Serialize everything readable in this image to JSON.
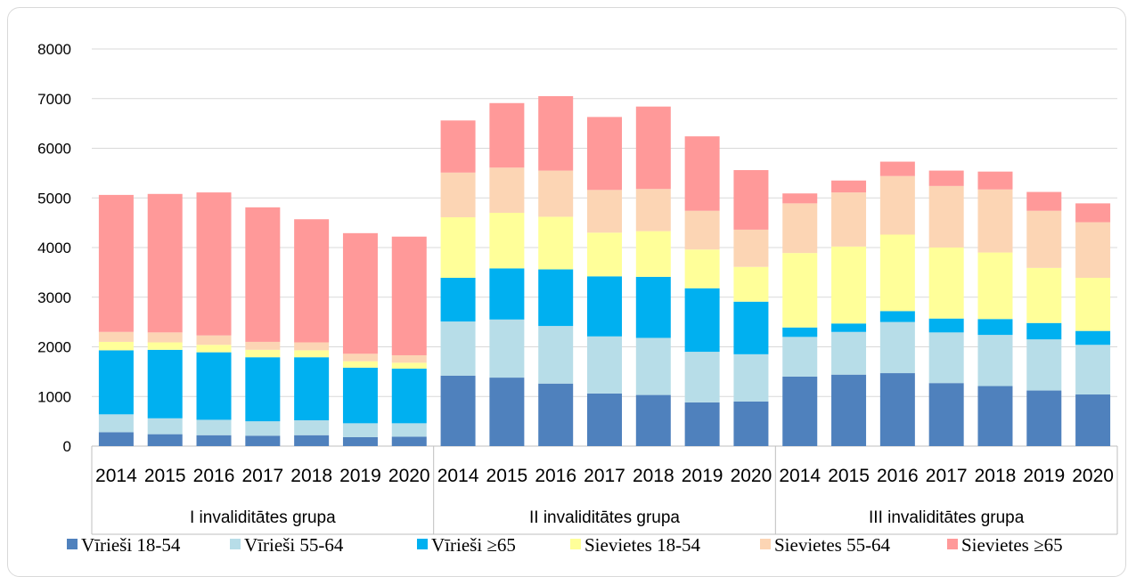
{
  "chart_data": {
    "type": "bar",
    "stacked": true,
    "ylim": [
      0,
      8000
    ],
    "yticks": [
      "0",
      "1000",
      "2000",
      "3000",
      "4000",
      "5000",
      "6000",
      "7000",
      "8000"
    ],
    "grid": true,
    "legend_position": "bottom",
    "groups": [
      "I invaliditātes grupa",
      "II invaliditātes grupa",
      "III invaliditātes grupa"
    ],
    "years": [
      "2014",
      "2015",
      "2016",
      "2017",
      "2018",
      "2019",
      "2020"
    ],
    "series": [
      {
        "name": "Vīrieši 18-54",
        "color": "#4f81bd",
        "values": [
          280,
          240,
          220,
          210,
          220,
          180,
          190,
          1420,
          1380,
          1260,
          1060,
          1030,
          880,
          900,
          1400,
          1440,
          1470,
          1270,
          1210,
          1120,
          1040
        ]
      },
      {
        "name": "Vīrieši 55-64",
        "color": "#b7dde8",
        "values": [
          360,
          320,
          310,
          290,
          300,
          280,
          270,
          1090,
          1170,
          1160,
          1150,
          1150,
          1020,
          950,
          800,
          860,
          1030,
          1020,
          1030,
          1030,
          1000
        ]
      },
      {
        "name": "Vīrieši ≥65",
        "color": "#00b0f0",
        "values": [
          1290,
          1380,
          1360,
          1290,
          1270,
          1120,
          1100,
          880,
          1030,
          1140,
          1210,
          1230,
          1280,
          1060,
          190,
          170,
          220,
          280,
          320,
          330,
          280
        ]
      },
      {
        "name": "Sievietes 18-54",
        "color": "#ffff99",
        "values": [
          170,
          150,
          150,
          150,
          140,
          130,
          120,
          1220,
          1120,
          1060,
          880,
          920,
          780,
          700,
          1500,
          1550,
          1540,
          1430,
          1340,
          1110,
          1070
        ]
      },
      {
        "name": "Sievietes 55-64",
        "color": "#fcd5b4",
        "values": [
          200,
          200,
          190,
          160,
          160,
          150,
          150,
          900,
          910,
          930,
          860,
          850,
          780,
          750,
          1000,
          1090,
          1180,
          1240,
          1270,
          1150,
          1120
        ]
      },
      {
        "name": "Sievietes ≥65",
        "color": "#ff9999",
        "values": [
          2760,
          2790,
          2880,
          2710,
          2480,
          2430,
          2390,
          1050,
          1300,
          1500,
          1470,
          1660,
          1500,
          1200,
          200,
          240,
          290,
          310,
          360,
          380,
          380
        ]
      }
    ]
  }
}
